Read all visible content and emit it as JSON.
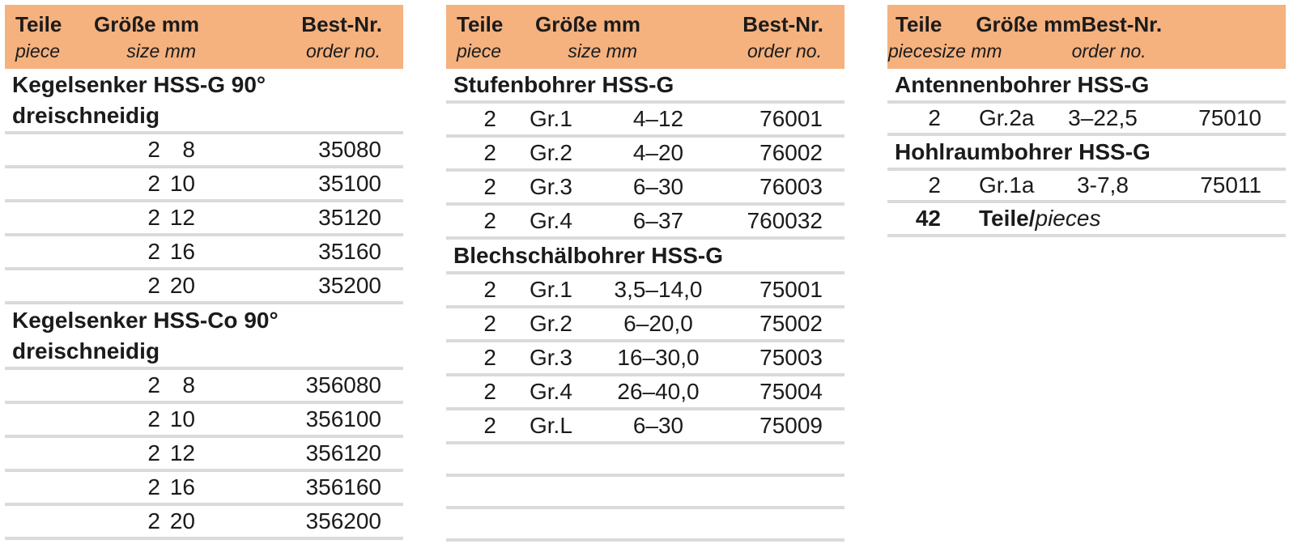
{
  "colors": {
    "header_bg": "#F5B17E",
    "divider": "#DADADA",
    "text": "#1B1B1B"
  },
  "tables": [
    {
      "position": "left",
      "header": {
        "teile": "Teile",
        "piece": "piece",
        "groesse": "Größe mm",
        "size": "size mm",
        "best": "Best-Nr.",
        "order": "order no."
      },
      "sections": [
        {
          "title_lines": [
            "Kegelsenker HSS-G 90°",
            "dreischneidig"
          ],
          "rows": [
            [
              "2",
              "",
              "8",
              "35080"
            ],
            [
              "2",
              "",
              "10",
              "35100"
            ],
            [
              "2",
              "",
              "12",
              "35120"
            ],
            [
              "2",
              "",
              "16",
              "35160"
            ],
            [
              "2",
              "",
              "20",
              "35200"
            ]
          ]
        },
        {
          "title_lines": [
            "Kegelsenker HSS-Co 90°",
            "dreischneidig"
          ],
          "rows": [
            [
              "2",
              "",
              "8",
              "356080"
            ],
            [
              "2",
              "",
              "10",
              "356100"
            ],
            [
              "2",
              "",
              "12",
              "356120"
            ],
            [
              "2",
              "",
              "16",
              "356160"
            ],
            [
              "2",
              "",
              "20",
              "356200"
            ]
          ]
        }
      ],
      "empty_rows": 0
    },
    {
      "position": "middle",
      "header": {
        "teile": "Teile",
        "piece": "piece",
        "groesse": "Größe mm",
        "size": "size mm",
        "best": "Best-Nr.",
        "order": "order no."
      },
      "sections": [
        {
          "title_lines": [
            "Stufenbohrer HSS-G"
          ],
          "rows": [
            [
              "2",
              "Gr.1",
              "4–12",
              "76001"
            ],
            [
              "2",
              "Gr.2",
              "4–20",
              "76002"
            ],
            [
              "2",
              "Gr.3",
              "6–30",
              "76003"
            ],
            [
              "2",
              "Gr.4",
              "6–37",
              "760032"
            ]
          ]
        },
        {
          "title_lines": [
            "Blechschälbohrer HSS-G"
          ],
          "rows": [
            [
              "2",
              "Gr.1",
              "3,5–14,0",
              "75001"
            ],
            [
              "2",
              "Gr.2",
              "6–20,0",
              "75002"
            ],
            [
              "2",
              "Gr.3",
              "16–30,0",
              "75003"
            ],
            [
              "2",
              "Gr.4",
              "26–40,0",
              "75004"
            ],
            [
              "2",
              "Gr.L",
              "6–30",
              "75009"
            ]
          ]
        }
      ],
      "empty_rows": 3
    },
    {
      "position": "right",
      "header": {
        "teile": "Teile",
        "piece": "piece",
        "groesse": "Größe mm",
        "size": "size mm",
        "best": "Best-Nr.",
        "order": "order no."
      },
      "sections": [
        {
          "title_lines": [
            "Antennenbohrer HSS-G"
          ],
          "rows": [
            [
              "2",
              "Gr.2a",
              "3–22,5",
              "75010"
            ]
          ]
        },
        {
          "title_lines": [
            "Hohlraumbohrer HSS-G"
          ],
          "rows": [
            [
              "2",
              "Gr.1a",
              "3-7,8",
              "75011"
            ]
          ]
        }
      ],
      "total": {
        "qty": "42",
        "label": "Teile/",
        "label_italic": "pieces"
      },
      "empty_rows": 0
    }
  ]
}
